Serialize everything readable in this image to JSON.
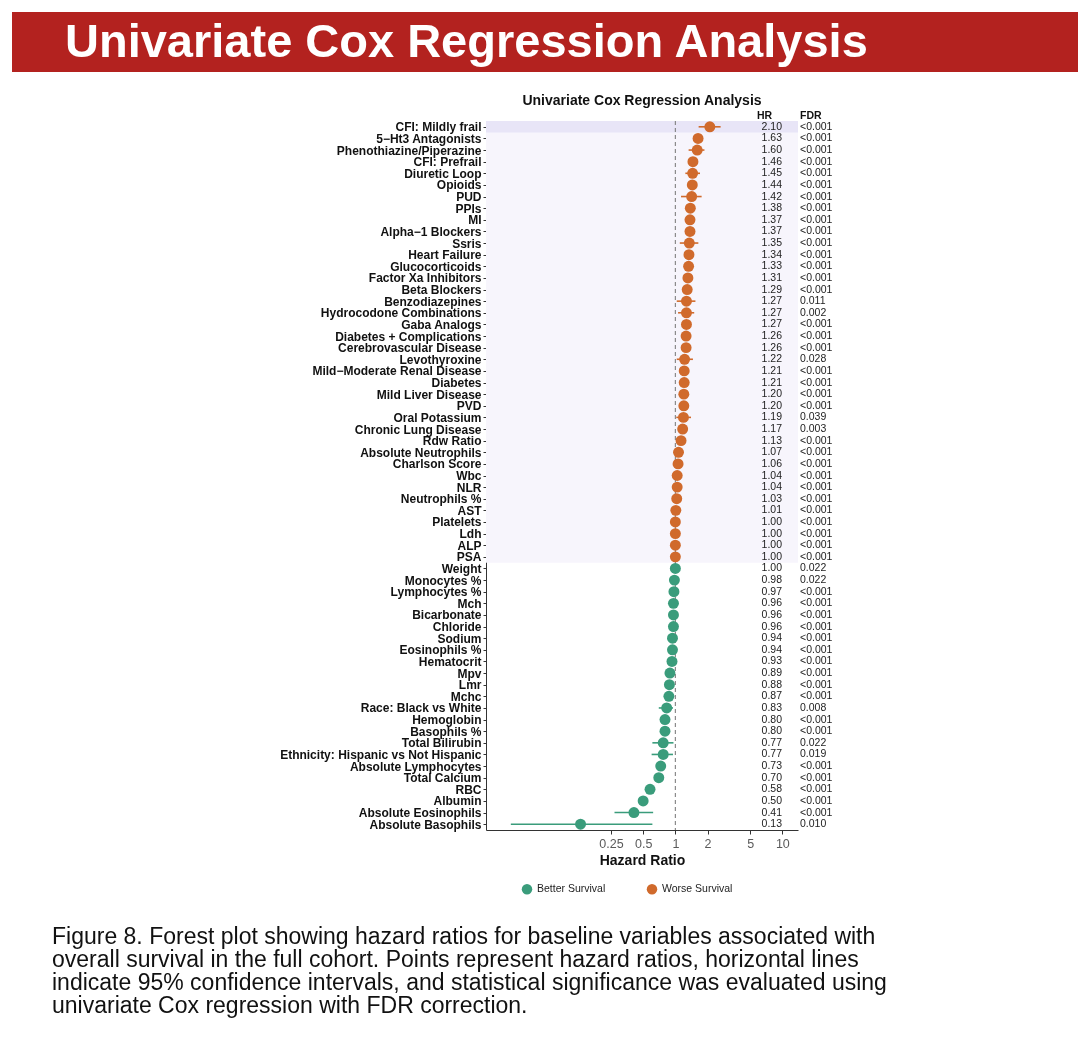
{
  "chart_data": {
    "type": "scatter",
    "orientation": "horizontal",
    "title": "Univariate Cox Regression Analysis",
    "subtitle": "Univariate Cox Regression Analysis",
    "xlabel": "Hazard Ratio",
    "categories": [
      "CFI: Mildly frail",
      "5−Ht3 Antagonists",
      "Phenothiazine/Piperazine",
      "CFI: Prefrail",
      "Diuretic Loop",
      "Opioids",
      "PUD",
      "PPIs",
      "MI",
      "Alpha−1 Blockers",
      "Ssris",
      "Heart Failure",
      "Glucocorticoids",
      "Factor Xa Inhibitors",
      "Beta Blockers",
      "Benzodiazepines",
      "Hydrocodone Combinations",
      "Gaba Analogs",
      "Diabetes + Complications",
      "Cerebrovascular Disease",
      "Levothyroxine",
      "Mild−Moderate Renal Disease",
      "Diabetes",
      "Mild Liver Disease",
      "PVD",
      "Oral Potassium",
      "Chronic Lung Disease",
      "Rdw Ratio",
      "Absolute Neutrophils",
      "Charlson Score",
      "Wbc",
      "NLR",
      "Neutrophils %",
      "AST",
      "Platelets",
      "Ldh",
      "ALP",
      "PSA",
      "Weight",
      "Monocytes %",
      "Lymphocytes %",
      "Mch",
      "Bicarbonate",
      "Chloride",
      "Sodium",
      "Eosinophils %",
      "Hematocrit",
      "Mpv",
      "Lmr",
      "Mchc",
      "Race: Black vs White",
      "Hemoglobin",
      "Basophils %",
      "Total Bilirubin",
      "Ethnicity: Hispanic vs Not Hispanic",
      "Absolute Lymphocytes",
      "Total Calcium",
      "RBC",
      "Albumin",
      "Absolute Eosinophils",
      "Absolute Basophils"
    ],
    "series": [
      {
        "name": "Better Survival",
        "color": "#3a9c7b",
        "values": [
          null,
          null,
          null,
          null,
          null,
          null,
          null,
          null,
          null,
          null,
          null,
          null,
          null,
          null,
          null,
          null,
          null,
          null,
          null,
          null,
          null,
          null,
          null,
          null,
          null,
          null,
          null,
          null,
          null,
          null,
          null,
          null,
          null,
          null,
          null,
          null,
          null,
          null,
          1.0,
          0.98,
          0.97,
          0.96,
          0.96,
          0.96,
          0.94,
          0.94,
          0.93,
          0.89,
          0.88,
          0.87,
          0.83,
          0.8,
          0.8,
          0.77,
          0.77,
          0.73,
          0.7,
          0.58,
          0.5,
          0.41,
          0.13
        ],
        "errors": [
          null,
          null,
          null,
          null,
          null,
          null,
          null,
          null,
          null,
          null,
          null,
          null,
          null,
          null,
          null,
          null,
          null,
          null,
          null,
          null,
          null,
          null,
          null,
          null,
          null,
          null,
          null,
          null,
          null,
          null,
          null,
          null,
          null,
          null,
          null,
          null,
          null,
          null,
          null,
          null,
          null,
          null,
          null,
          null,
          null,
          null,
          null,
          null,
          null,
          null,
          [
            0.7,
            0.95
          ],
          null,
          null,
          [
            0.61,
            0.96
          ],
          [
            0.6,
            0.95
          ],
          null,
          null,
          null,
          null,
          [
            0.27,
            0.62
          ],
          [
            0.029,
            0.61
          ]
        ]
      },
      {
        "name": "Worse Survival",
        "color": "#d06a2c",
        "values": [
          2.1,
          1.63,
          1.6,
          1.46,
          1.45,
          1.44,
          1.42,
          1.38,
          1.37,
          1.37,
          1.35,
          1.34,
          1.33,
          1.31,
          1.29,
          1.27,
          1.27,
          1.27,
          1.26,
          1.26,
          1.22,
          1.21,
          1.21,
          1.2,
          1.2,
          1.19,
          1.17,
          1.13,
          1.07,
          1.06,
          1.04,
          1.04,
          1.03,
          1.01,
          1.0,
          1.0,
          1.0,
          1.0,
          null,
          null,
          null,
          null,
          null,
          null,
          null,
          null,
          null,
          null,
          null,
          null,
          null,
          null,
          null,
          null,
          null,
          null,
          null,
          null,
          null,
          null,
          null
        ],
        "errors": [
          [
            1.65,
            2.65
          ],
          null,
          [
            1.33,
            1.87
          ],
          null,
          [
            1.24,
            1.7
          ],
          null,
          [
            1.13,
            1.76
          ],
          null,
          null,
          null,
          [
            1.1,
            1.64
          ],
          null,
          null,
          null,
          null,
          [
            1.03,
            1.54
          ],
          [
            1.06,
            1.5
          ],
          null,
          null,
          null,
          [
            1.03,
            1.46
          ],
          null,
          null,
          null,
          null,
          [
            1.02,
            1.4
          ],
          null,
          null,
          null,
          null,
          null,
          null,
          null,
          null,
          null,
          null,
          null,
          null,
          null,
          null,
          null,
          null,
          null,
          null,
          null,
          null,
          null,
          null,
          null,
          null,
          null,
          null,
          null,
          null,
          null,
          null,
          null,
          null,
          null,
          null,
          null
        ]
      }
    ],
    "xlim": [
      0.017,
      14
    ],
    "xticks": [
      0.25,
      0.5,
      1,
      2,
      5,
      10
    ],
    "log": "x",
    "marker": "circle",
    "legend": "bottom",
    "ref_lines": [
      {
        "axis": "x",
        "value": 1,
        "color": "#808080",
        "line_style": "dashed"
      }
    ],
    "bands": [
      {
        "axis": "y",
        "from": "CFI: Mildly frail",
        "to": "PSA",
        "color": "#f7f5fc"
      },
      {
        "axis": "y",
        "from": "CFI: Mildly frail",
        "to": "CFI: Mildly frail",
        "color": "#e8e5f7"
      }
    ],
    "annotations": [
      "HR",
      "FDR",
      "2.10",
      "<0.001",
      "1.63",
      "<0.001",
      "1.60",
      "<0.001",
      "1.46",
      "<0.001",
      "1.45",
      "<0.001",
      "1.44",
      "<0.001",
      "1.42",
      "<0.001",
      "1.38",
      "<0.001",
      "1.37",
      "<0.001",
      "1.37",
      "<0.001",
      "1.35",
      "<0.001",
      "1.34",
      "<0.001",
      "1.33",
      "<0.001",
      "1.31",
      "<0.001",
      "1.29",
      "<0.001",
      "1.27",
      "0.011",
      "1.27",
      "0.002",
      "1.27",
      "<0.001",
      "1.26",
      "<0.001",
      "1.26",
      "<0.001",
      "1.22",
      "0.028",
      "1.21",
      "<0.001",
      "1.21",
      "<0.001",
      "1.20",
      "<0.001",
      "1.20",
      "<0.001",
      "1.19",
      "0.039",
      "1.17",
      "0.003",
      "1.13",
      "<0.001",
      "1.07",
      "<0.001",
      "1.06",
      "<0.001",
      "1.04",
      "<0.001",
      "1.04",
      "<0.001",
      "1.03",
      "<0.001",
      "1.01",
      "<0.001",
      "1.00",
      "<0.001",
      "1.00",
      "<0.001",
      "1.00",
      "<0.001",
      "1.00",
      "<0.001",
      "1.00",
      "0.022",
      "0.98",
      "0.022",
      "0.97",
      "<0.001",
      "0.96",
      "<0.001",
      "0.96",
      "<0.001",
      "0.96",
      "<0.001",
      "0.94",
      "<0.001",
      "0.94",
      "<0.001",
      "0.93",
      "<0.001",
      "0.89",
      "<0.001",
      "0.88",
      "<0.001",
      "0.87",
      "<0.001",
      "0.83",
      "0.008",
      "0.80",
      "<0.001",
      "0.80",
      "<0.001",
      "0.77",
      "0.022",
      "0.77",
      "0.019",
      "0.73",
      "<0.001",
      "0.70",
      "<0.001",
      "0.58",
      "<0.001",
      "0.50",
      "<0.001",
      "0.41",
      "<0.001",
      "0.13",
      "0.010",
      "Figure 8. Forest plot showing hazard ratios for baseline variables associated with overall survival in the full cohort. Points represent hazard ratios, horizontal lines indicate 95% confidence intervals, and statistical significance was evaluated using univariate Cox regression with FDR correction."
    ]
  }
}
